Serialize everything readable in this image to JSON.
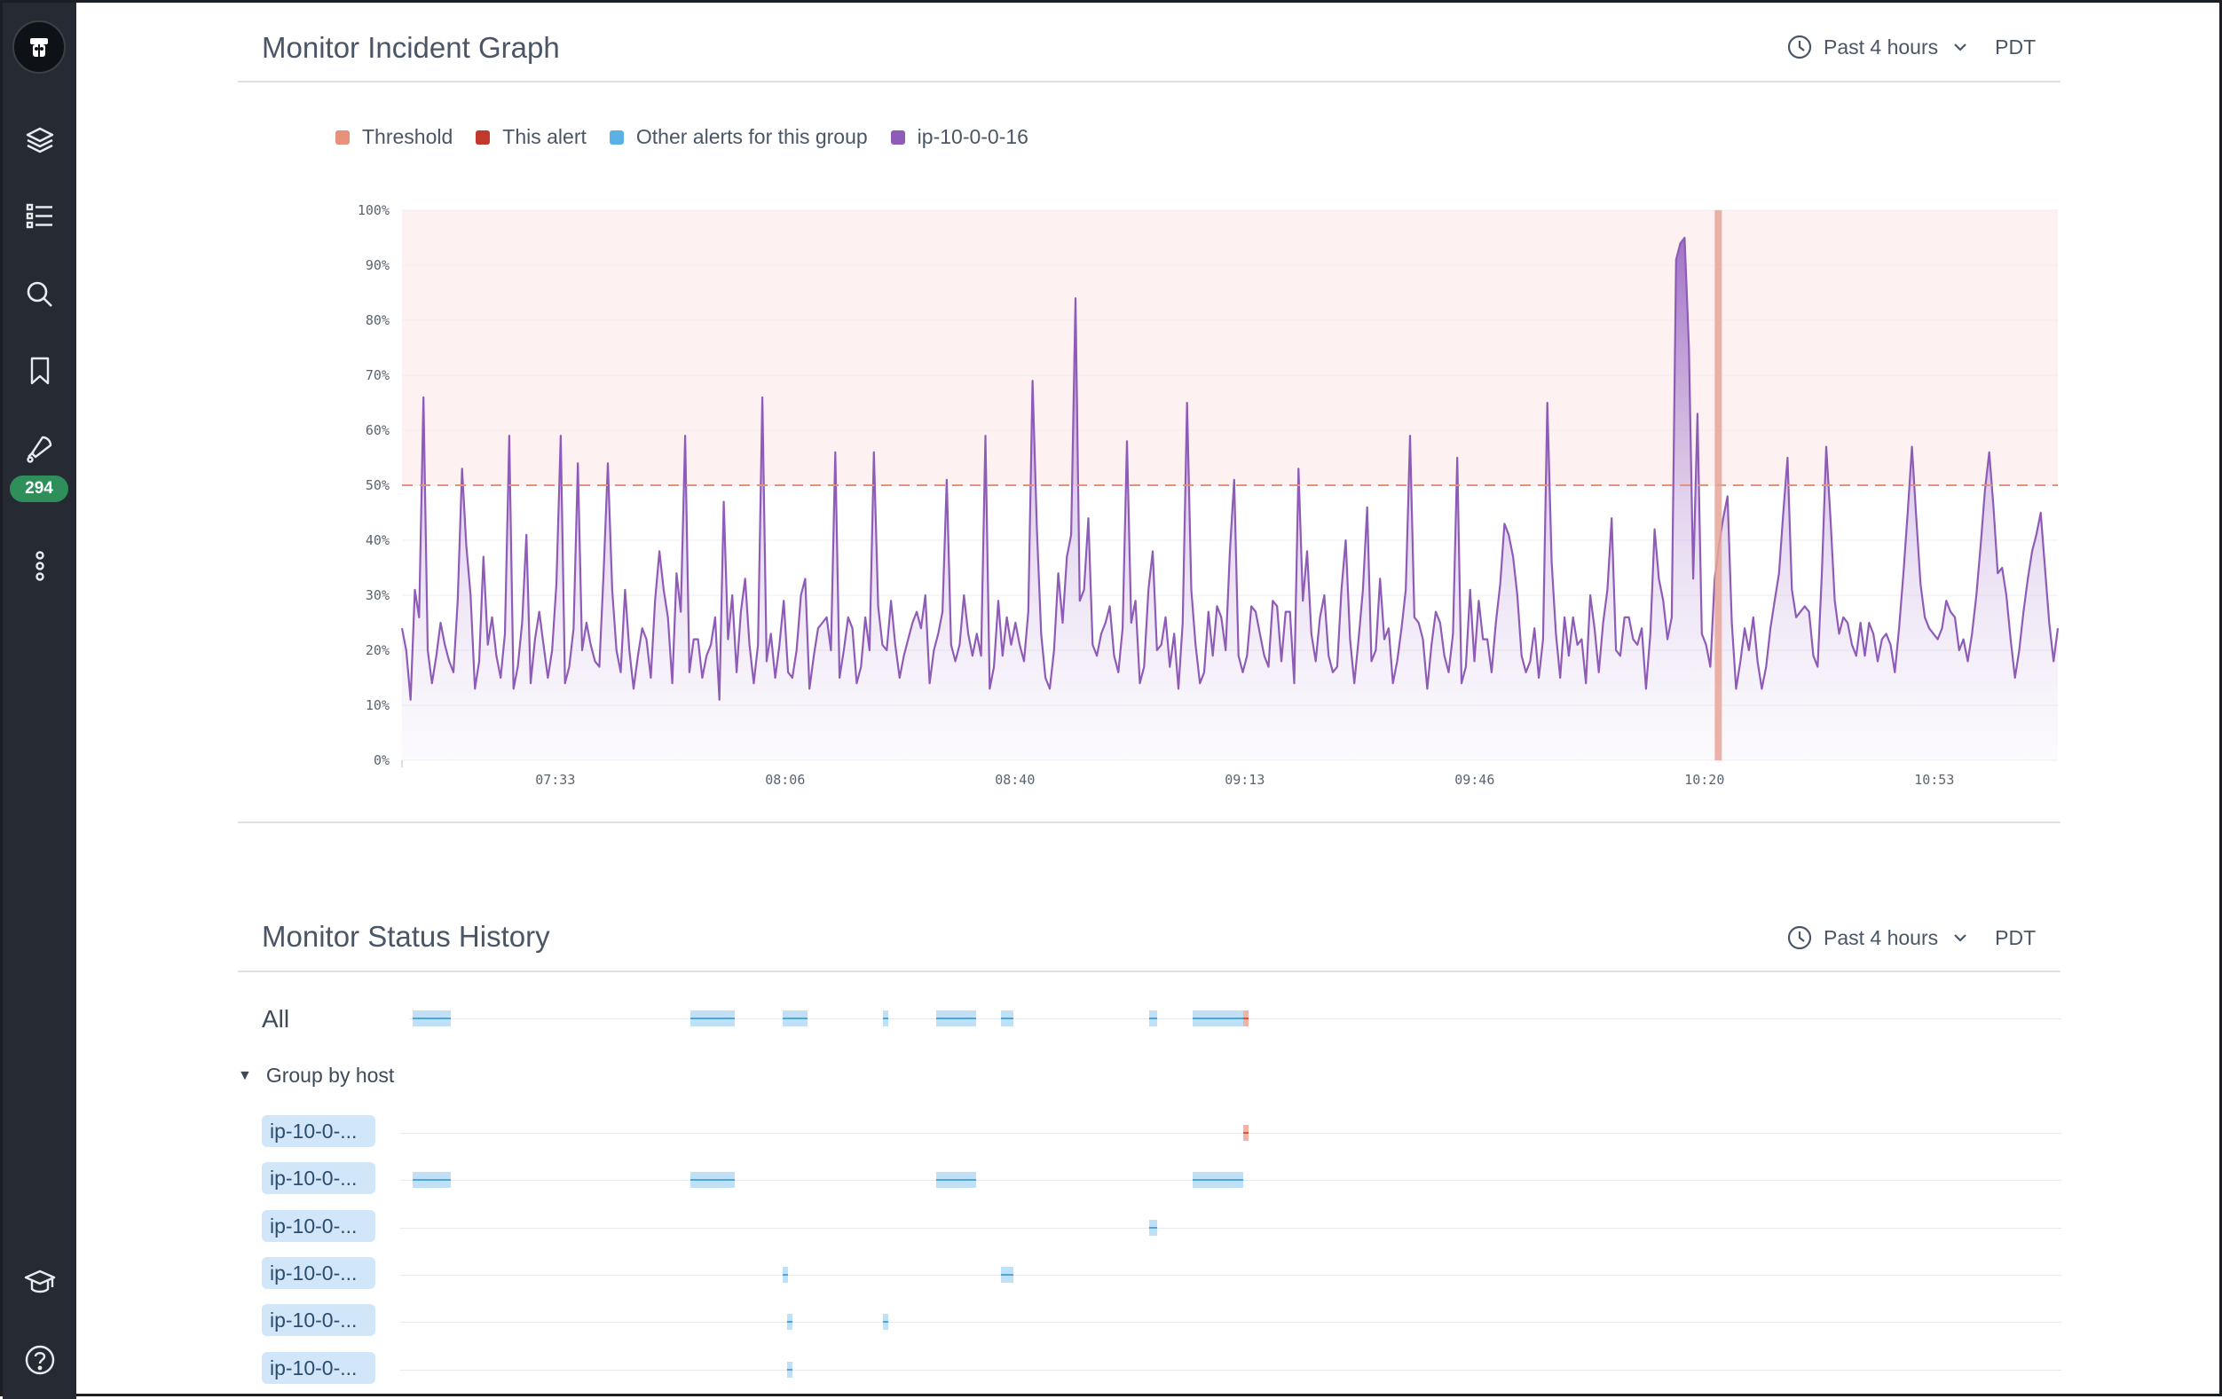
{
  "sidebar": {
    "badge_count": "294",
    "icons": [
      "logo-icon",
      "layers-icon",
      "list-icon",
      "search-icon",
      "bookmark-icon",
      "alerts-icon",
      "more-icon",
      "learn-icon",
      "help-icon"
    ]
  },
  "incident_graph": {
    "title": "Monitor Incident Graph",
    "time_range": "Past 4 hours",
    "timezone": "PDT",
    "legend": [
      {
        "label": "Threshold",
        "color": "#e8917a"
      },
      {
        "label": "This alert",
        "color": "#c0392b"
      },
      {
        "label": "Other alerts for this group",
        "color": "#5bb0e6"
      },
      {
        "label": "ip-10-0-0-16",
        "color": "#8f5bb8"
      }
    ]
  },
  "chart_data": {
    "type": "area",
    "ylim": [
      0,
      100
    ],
    "y_ticks": [
      "0%",
      "10%",
      "20%",
      "30%",
      "40%",
      "50%",
      "60%",
      "70%",
      "80%",
      "90%",
      "100%"
    ],
    "x_ticks": [
      "07:33",
      "08:06",
      "08:40",
      "09:13",
      "09:46",
      "10:20",
      "10:53"
    ],
    "threshold": 50,
    "series": [
      {
        "name": "ip-10-0-0-16",
        "values": [
          24,
          20,
          11,
          31,
          26,
          66,
          20,
          14,
          19,
          25,
          21,
          18,
          16,
          29,
          53,
          39,
          30,
          13,
          18,
          37,
          21,
          26,
          19,
          15,
          23,
          59,
          13,
          17,
          25,
          41,
          14,
          22,
          27,
          21,
          15,
          20,
          32,
          59,
          14,
          17,
          24,
          54,
          20,
          25,
          21,
          18,
          17,
          34,
          54,
          31,
          20,
          16,
          31,
          20,
          13,
          19,
          24,
          22,
          15,
          29,
          38,
          31,
          26,
          14,
          34,
          27,
          59,
          16,
          22,
          22,
          15,
          19,
          21,
          26,
          11,
          47,
          22,
          30,
          16,
          27,
          33,
          21,
          14,
          21,
          66,
          18,
          23,
          15,
          21,
          29,
          16,
          15,
          20,
          30,
          33,
          13,
          19,
          24,
          25,
          26,
          20,
          56,
          15,
          20,
          26,
          24,
          14,
          17,
          26,
          20,
          56,
          28,
          21,
          20,
          29,
          21,
          15,
          19,
          22,
          25,
          27,
          24,
          30,
          14,
          20,
          23,
          27,
          51,
          21,
          18,
          21,
          30,
          23,
          19,
          23,
          19,
          59,
          13,
          17,
          29,
          19,
          26,
          21,
          25,
          21,
          18,
          27,
          69,
          42,
          23,
          15,
          13,
          20,
          34,
          25,
          37,
          41,
          84,
          29,
          31,
          44,
          21,
          19,
          23,
          25,
          28,
          19,
          16,
          24,
          58,
          25,
          29,
          14,
          17,
          31,
          38,
          20,
          21,
          26,
          17,
          23,
          13,
          25,
          65,
          31,
          21,
          14,
          16,
          27,
          19,
          28,
          26,
          20,
          38,
          51,
          19,
          16,
          19,
          28,
          27,
          23,
          19,
          17,
          29,
          28,
          18,
          27,
          27,
          14,
          53,
          29,
          38,
          23,
          18,
          26,
          30,
          19,
          16,
          17,
          31,
          40,
          22,
          14,
          22,
          31,
          46,
          18,
          20,
          33,
          22,
          24,
          14,
          18,
          24,
          31,
          59,
          26,
          25,
          22,
          13,
          21,
          27,
          25,
          19,
          16,
          23,
          55,
          14,
          17,
          31,
          18,
          29,
          22,
          22,
          16,
          25,
          32,
          43,
          41,
          37,
          30,
          19,
          16,
          18,
          24,
          15,
          22,
          65,
          36,
          23,
          15,
          26,
          19,
          26,
          21,
          22,
          14,
          30,
          24,
          16,
          25,
          31,
          44,
          20,
          19,
          26,
          26,
          22,
          21,
          24,
          13,
          23,
          42,
          33,
          29,
          22,
          26,
          91,
          94,
          95,
          75,
          33,
          63,
          23,
          21,
          17,
          33,
          39,
          44,
          48,
          25,
          13,
          18,
          24,
          20,
          26,
          18,
          13,
          17,
          24,
          29,
          34,
          45,
          55,
          31,
          26,
          27,
          28,
          27,
          19,
          17,
          34,
          57,
          44,
          29,
          23,
          26,
          25,
          21,
          19,
          25,
          19,
          25,
          23,
          18,
          22,
          23,
          21,
          16,
          24,
          34,
          45,
          57,
          44,
          32,
          26,
          24,
          23,
          22,
          24,
          29,
          27,
          26,
          20,
          22,
          18,
          23,
          30,
          39,
          49,
          56,
          46,
          34,
          35,
          30,
          22,
          15,
          20,
          27,
          33,
          38,
          41,
          45,
          35,
          25,
          18,
          24
        ],
        "color": "#8f5bb8"
      }
    ],
    "alert_marker_time": "10:22"
  },
  "status_history": {
    "title": "Monitor Status History",
    "time_range": "Past 4 hours",
    "timezone": "PDT",
    "all_label": "All",
    "group_label": "Group by host",
    "hosts": [
      "ip-10-0-...",
      "ip-10-0-...",
      "ip-10-0-...",
      "ip-10-0-...",
      "ip-10-0-...",
      "ip-10-0-..."
    ]
  }
}
